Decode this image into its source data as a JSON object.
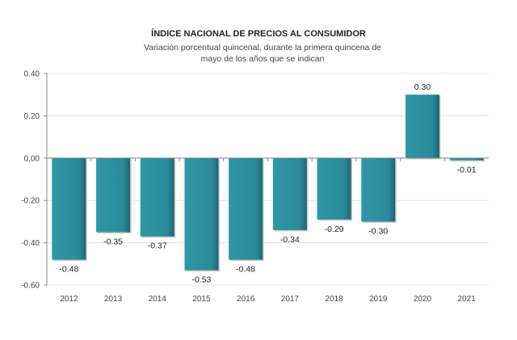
{
  "chart_data": {
    "type": "bar",
    "title": "ÍNDICE NACIONAL DE PRECIOS AL CONSUMIDOR",
    "subtitle": "Variación porcentual quincenal, durante la primera quincena de mayo de los años que se indican",
    "categories": [
      "2012",
      "2013",
      "2014",
      "2015",
      "2016",
      "2017",
      "2018",
      "2019",
      "2020",
      "2021"
    ],
    "values": [
      -0.48,
      -0.35,
      -0.37,
      -0.53,
      -0.48,
      -0.34,
      -0.29,
      -0.3,
      0.3,
      -0.01
    ],
    "data_labels": [
      "-0.48",
      "-0.35",
      "-0.37",
      "-0.53",
      "-0.48",
      "-0.34",
      "-0.29",
      "-0.30",
      "0.30",
      "-0.01"
    ],
    "ylim": [
      -0.6,
      0.4
    ],
    "yticks": [
      "0.40",
      "0.20",
      "0.00",
      "-0.20",
      "-0.40",
      "-0.60"
    ],
    "ytick_values": [
      0.4,
      0.2,
      0,
      -0.2,
      -0.4,
      -0.6
    ],
    "xlabel": "",
    "ylabel": "",
    "grid": true,
    "bar_color": "#2b8d9c"
  }
}
